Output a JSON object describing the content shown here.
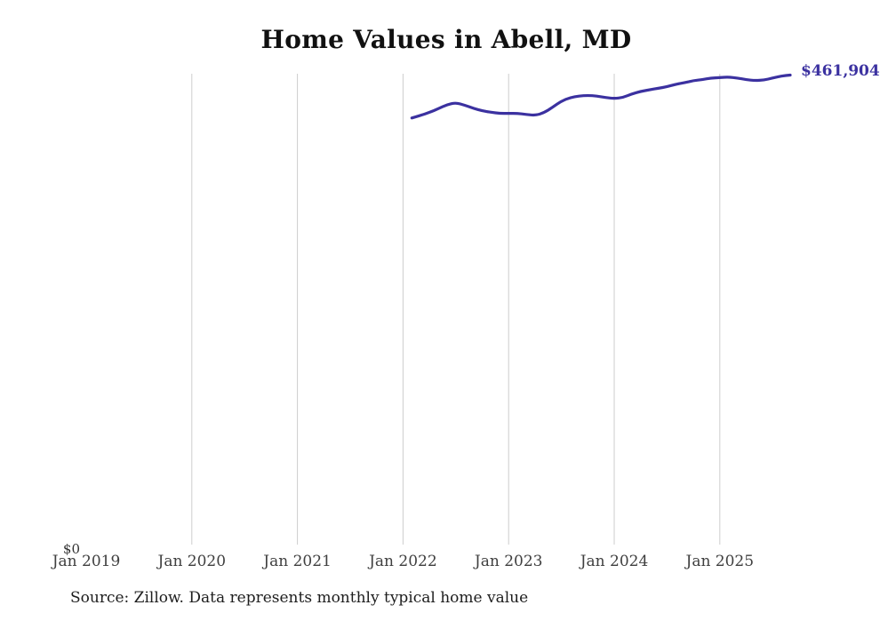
{
  "page": {
    "background": "#ffffff"
  },
  "header": {
    "title": "Home Values in Abell, MD"
  },
  "chart_data": {
    "type": "line",
    "title": "Home Values in Abell, MD",
    "xlabel": "",
    "ylabel": "",
    "grid": "vertical-only",
    "legend": "none",
    "ylim": [
      0,
      461904
    ],
    "y_axis": {
      "zero_label": "$0",
      "min": 0,
      "max": 461904
    },
    "end_label": "$461,904",
    "latest_value": 461904,
    "x_tick_labels": [
      "Jan 2019",
      "Jan 2020",
      "Jan 2021",
      "Jan 2022",
      "Jan 2023",
      "Jan 2024",
      "Jan 2025"
    ],
    "gridlines_at": [
      "Jan 2020",
      "Jan 2021",
      "Jan 2022",
      "Jan 2023",
      "Jan 2024",
      "Jan 2025"
    ],
    "colors": {
      "line": "#3b31a0",
      "gridline": "#cdcdcd",
      "end_label": "#3b31a0",
      "title": "#111111",
      "tick_label": "#3f3f3f",
      "source": "#1d1d1d"
    },
    "series": [
      {
        "name": "Monthly typical home value",
        "x": [
          "Feb 2022",
          "Mar 2022",
          "Apr 2022",
          "May 2022",
          "Jun 2022",
          "Jul 2022",
          "Aug 2022",
          "Sep 2022",
          "Oct 2022",
          "Nov 2022",
          "Dec 2022",
          "Jan 2023",
          "Feb 2023",
          "Mar 2023",
          "Apr 2023",
          "May 2023",
          "Jun 2023",
          "Jul 2023",
          "Aug 2023",
          "Sep 2023",
          "Oct 2023",
          "Nov 2023",
          "Dec 2023",
          "Jan 2024",
          "Feb 2024",
          "Mar 2024",
          "Apr 2024",
          "May 2024",
          "Jun 2024",
          "Jul 2024",
          "Aug 2024",
          "Sep 2024",
          "Oct 2024",
          "Nov 2024",
          "Dec 2024",
          "Jan 2025",
          "Feb 2025",
          "Mar 2025",
          "Apr 2025",
          "May 2025",
          "Jun 2025",
          "Jul 2025",
          "Aug 2025",
          "Sep 2025"
        ],
        "values": [
          420000,
          422500,
          425500,
          429000,
          433000,
          435000,
          432500,
          429500,
          427000,
          425500,
          424500,
          424500,
          424500,
          423500,
          422500,
          425000,
          430500,
          436500,
          440000,
          441500,
          442000,
          441500,
          440000,
          439000,
          440000,
          443500,
          446000,
          447500,
          449000,
          450500,
          453000,
          454500,
          456500,
          457500,
          459000,
          459500,
          460000,
          459000,
          457500,
          456500,
          457000,
          459000,
          461000,
          461904
        ]
      }
    ]
  },
  "footer": {
    "source": "Source: Zillow. Data represents monthly typical home value"
  }
}
